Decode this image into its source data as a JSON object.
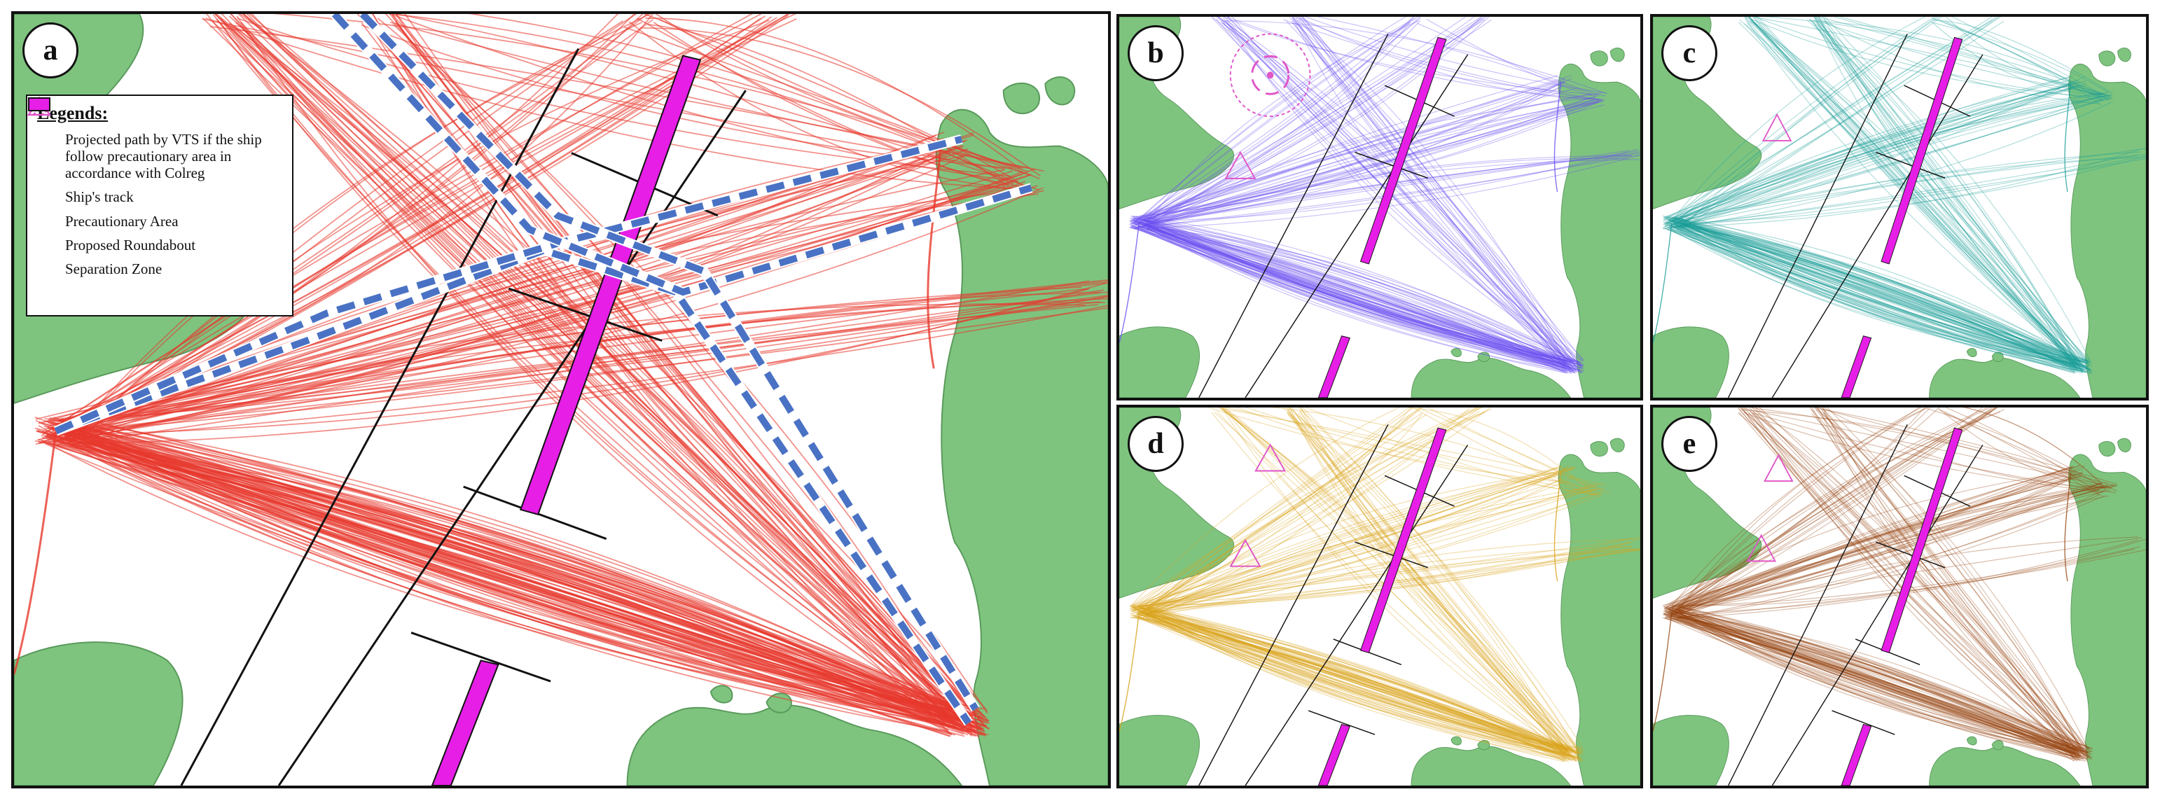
{
  "panels": [
    {
      "id": "a",
      "label": "a",
      "track_color": "#e8392d"
    },
    {
      "id": "b",
      "label": "b",
      "track_color": "#6b4df2"
    },
    {
      "id": "c",
      "label": "c",
      "track_color": "#1a9e98"
    },
    {
      "id": "d",
      "label": "d",
      "track_color": "#d9a21a"
    },
    {
      "id": "e",
      "label": "e",
      "track_color": "#94430e"
    }
  ],
  "legend": {
    "title": "Legends:",
    "items": [
      {
        "symbol": "dashed-blue-line",
        "label": "Projected path by VTS if the ship follow precautionary area in accordance with Colreg"
      },
      {
        "symbol": "red-line",
        "label": "Ship's track"
      },
      {
        "symbol": "triangle",
        "label": "Precautionary Area"
      },
      {
        "symbol": "dotted-circle",
        "label": "Proposed Roundabout"
      },
      {
        "symbol": "magenta-rect",
        "label": "Separation Zone"
      }
    ]
  },
  "colors": {
    "land": "#7ec47f",
    "separation_zone": "#e61ee6",
    "precautionary": "#e055c8",
    "projected_path": "#4a72c4",
    "lane_border": "#111111"
  }
}
